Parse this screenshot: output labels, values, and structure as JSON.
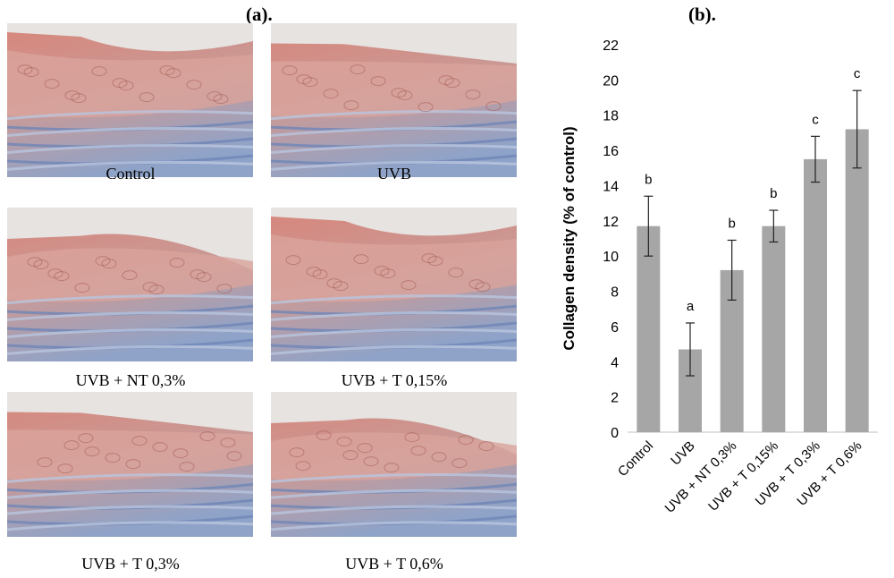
{
  "panel_a": {
    "title": "(a).",
    "images": [
      {
        "caption": "Control"
      },
      {
        "caption": "UVB"
      },
      {
        "caption": "UVB + NT 0,3%"
      },
      {
        "caption": "UVB + T 0,15%"
      },
      {
        "caption": "UVB + T 0,3%"
      },
      {
        "caption": "UVB + T 0,6%"
      }
    ]
  },
  "panel_b": {
    "title": "(b)."
  },
  "colors": {
    "bar": "#a6a6a6",
    "stain_red": "#d8867a",
    "stain_blue": "#8fa3c8",
    "stain_pale": "#e6e3e0"
  },
  "chart_data": {
    "type": "bar",
    "categories": [
      "Control",
      "UVB",
      "UVB + NT 0,3%",
      "UVB + T 0,15%",
      "UVB + T 0,3%",
      "UVB + T 0,6%"
    ],
    "values": [
      11.7,
      4.7,
      9.2,
      11.7,
      15.5,
      17.2
    ],
    "errors": [
      1.7,
      1.5,
      1.7,
      0.9,
      1.3,
      2.2
    ],
    "significance": [
      "b",
      "a",
      "b",
      "b",
      "c",
      "c"
    ],
    "ylabel": "Collagen density (% of control)",
    "xlabel": "",
    "ylim": [
      0,
      22
    ],
    "yticks": [
      0,
      2,
      4,
      6,
      8,
      10,
      12,
      14,
      16,
      18,
      20,
      22
    ],
    "grid": false
  }
}
